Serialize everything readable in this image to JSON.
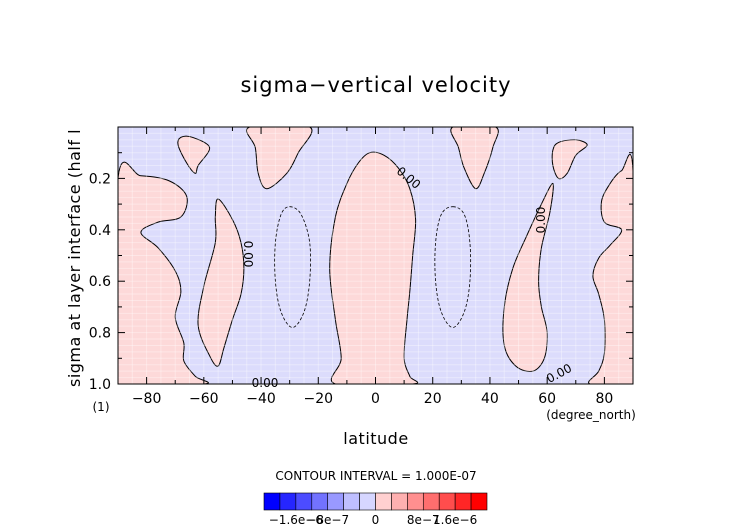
{
  "chart_data": {
    "type": "contour",
    "title": "sigma−vertical velocity",
    "xlabel": "latitude",
    "ylabel": "sigma at layer interface (half l",
    "x_unit": "(degree_north)",
    "y_unit": "(1)",
    "xlim": [
      -90,
      90
    ],
    "ylim": [
      0.0,
      1.0
    ],
    "y_inverted": true,
    "x_ticks": [
      -80,
      -60,
      -40,
      -20,
      0,
      20,
      40,
      60,
      80
    ],
    "x_tick_labels": [
      "−80",
      "−60",
      "−40",
      "−20",
      "0",
      "20",
      "40",
      "60",
      "80"
    ],
    "y_ticks": [
      0.2,
      0.4,
      0.6,
      0.8,
      1.0
    ],
    "y_tick_labels": [
      "0.2",
      "0.4",
      "0.6",
      "0.8",
      "1.0"
    ],
    "contour_interval_text": "CONTOUR INTERVAL = 1.000E-07",
    "contour_labels": [
      "0.00",
      "0.00",
      "0.00",
      "0.00",
      "0.00",
      "0.00"
    ],
    "colorbar": {
      "tick_labels": [
        "−1.6e−6",
        "−8e−7",
        "0",
        "8e−7",
        "1.6e−6"
      ],
      "colors": [
        "#0000ff",
        "#2626ff",
        "#4c4cff",
        "#7272ff",
        "#9999ff",
        "#bfbfff",
        "#d6d6ff",
        "#ffd0d0",
        "#ffb0b0",
        "#ff8f8f",
        "#ff6e6e",
        "#ff4d4d",
        "#ff2626",
        "#ff0000"
      ]
    },
    "regions": [
      {
        "sign": "positive",
        "color": "#fdd9d9",
        "points": [
          [
            -90,
            0.2
          ],
          [
            -82,
            0.19
          ],
          [
            -72,
            0.21
          ],
          [
            -66,
            0.27
          ],
          [
            -68,
            0.35
          ],
          [
            -76,
            0.37
          ],
          [
            -82,
            0.41
          ],
          [
            -76,
            0.47
          ],
          [
            -70,
            0.56
          ],
          [
            -68,
            0.64
          ],
          [
            -70,
            0.74
          ],
          [
            -67,
            0.84
          ],
          [
            -67,
            0.91
          ],
          [
            -63,
            0.97
          ],
          [
            -60,
            1.0
          ],
          [
            -90,
            1.0
          ]
        ]
      },
      {
        "sign": "positive",
        "color": "#fdd9d9",
        "points": [
          [
            -55,
            0.28
          ],
          [
            -50,
            0.36
          ],
          [
            -47,
            0.45
          ],
          [
            -46,
            0.55
          ],
          [
            -47,
            0.65
          ],
          [
            -50,
            0.75
          ],
          [
            -53,
            0.86
          ],
          [
            -55,
            0.93
          ],
          [
            -58,
            0.89
          ],
          [
            -62,
            0.77
          ],
          [
            -60,
            0.62
          ],
          [
            -56,
            0.45
          ],
          [
            -56,
            0.35
          ]
        ]
      },
      {
        "sign": "positive",
        "color": "#fdd9d9",
        "points": [
          [
            -68,
            0.04
          ],
          [
            -64,
            0.04
          ],
          [
            -58,
            0.08
          ],
          [
            -62,
            0.15
          ],
          [
            -63,
            0.18
          ],
          [
            -66,
            0.14
          ],
          [
            -69,
            0.07
          ]
        ]
      },
      {
        "sign": "positive",
        "color": "#fdd9d9",
        "points": [
          [
            -44,
            0.0
          ],
          [
            -23,
            0.0
          ],
          [
            -27,
            0.1
          ],
          [
            -31,
            0.18
          ],
          [
            -38,
            0.24
          ],
          [
            -41,
            0.18
          ],
          [
            -42,
            0.08
          ]
        ]
      },
      {
        "sign": "positive",
        "color": "#fdd9d9",
        "points": [
          [
            -2,
            0.1
          ],
          [
            3,
            0.11
          ],
          [
            8,
            0.16
          ],
          [
            12,
            0.24
          ],
          [
            14,
            0.36
          ],
          [
            13,
            0.5
          ],
          [
            12,
            0.64
          ],
          [
            11,
            0.75
          ],
          [
            10,
            0.9
          ],
          [
            12,
            0.97
          ],
          [
            13,
            1.0
          ],
          [
            -14,
            1.0
          ],
          [
            -12,
            0.9
          ],
          [
            -14,
            0.75
          ],
          [
            -16,
            0.55
          ],
          [
            -14,
            0.35
          ],
          [
            -10,
            0.22
          ],
          [
            -6,
            0.14
          ]
        ]
      },
      {
        "sign": "positive",
        "color": "#fdd9d9",
        "points": [
          [
            27,
            0.0
          ],
          [
            42,
            0.0
          ],
          [
            41,
            0.08
          ],
          [
            38,
            0.18
          ],
          [
            35,
            0.24
          ],
          [
            31,
            0.16
          ],
          [
            29,
            0.08
          ]
        ]
      },
      {
        "sign": "positive",
        "color": "#fdd9d9",
        "points": [
          [
            62,
            0.22
          ],
          [
            61,
            0.33
          ],
          [
            58,
            0.47
          ],
          [
            57,
            0.6
          ],
          [
            58,
            0.7
          ],
          [
            60,
            0.8
          ],
          [
            59,
            0.9
          ],
          [
            55,
            0.95
          ],
          [
            49,
            0.93
          ],
          [
            45,
            0.85
          ],
          [
            45,
            0.7
          ],
          [
            48,
            0.55
          ],
          [
            53,
            0.42
          ],
          [
            58,
            0.3
          ]
        ]
      },
      {
        "sign": "positive",
        "color": "#fdd9d9",
        "points": [
          [
            64,
            0.06
          ],
          [
            70,
            0.05
          ],
          [
            74,
            0.07
          ],
          [
            70,
            0.11
          ],
          [
            67,
            0.18
          ],
          [
            64,
            0.2
          ],
          [
            62,
            0.15
          ],
          [
            62,
            0.09
          ]
        ]
      },
      {
        "sign": "positive",
        "color": "#fdd9d9",
        "points": [
          [
            90,
            0.17
          ],
          [
            86,
            0.17
          ],
          [
            82,
            0.22
          ],
          [
            79,
            0.29
          ],
          [
            80,
            0.37
          ],
          [
            86,
            0.4
          ],
          [
            82,
            0.46
          ],
          [
            78,
            0.51
          ],
          [
            76,
            0.58
          ],
          [
            78,
            0.65
          ],
          [
            80,
            0.75
          ],
          [
            80,
            0.88
          ],
          [
            78,
            0.95
          ],
          [
            75,
            1.0
          ],
          [
            90,
            1.0
          ]
        ]
      }
    ],
    "negative_contours": [
      {
        "points": [
          [
            -30,
            0.31
          ],
          [
            -26,
            0.34
          ],
          [
            -23,
            0.45
          ],
          [
            -23,
            0.6
          ],
          [
            -25,
            0.72
          ],
          [
            -29,
            0.78
          ],
          [
            -33,
            0.72
          ],
          [
            -35,
            0.6
          ],
          [
            -35,
            0.45
          ],
          [
            -33,
            0.34
          ]
        ]
      },
      {
        "points": [
          [
            27,
            0.31
          ],
          [
            31,
            0.34
          ],
          [
            33,
            0.45
          ],
          [
            33,
            0.6
          ],
          [
            31,
            0.72
          ],
          [
            27,
            0.78
          ],
          [
            23,
            0.72
          ],
          [
            21,
            0.6
          ],
          [
            21,
            0.45
          ],
          [
            23,
            0.34
          ]
        ]
      }
    ],
    "background_sign": "negative",
    "background_color": "#dcdcfc"
  }
}
